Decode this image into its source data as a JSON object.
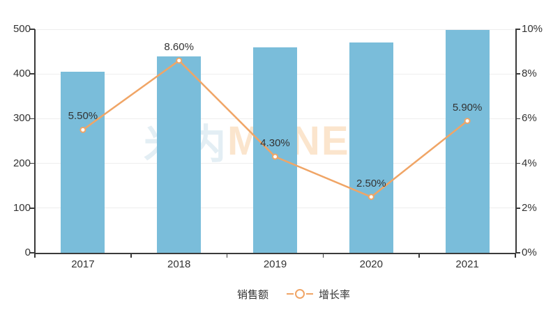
{
  "colors": {
    "bar": "#7abdda",
    "line": "#f0a566",
    "marker_fill": "#ffffff",
    "axis": "#3a3a3a",
    "grid": "#eeeeee",
    "text": "#333333",
    "watermark_cjk": "#e3eef4",
    "watermark_latin": "#fbe5cd"
  },
  "watermark": {
    "cjk": "米内",
    "latin": "MENET"
  },
  "legend": {
    "items": [
      {
        "label": "销售额",
        "marker": "bar-swatch"
      },
      {
        "label": "增长率",
        "marker": "line-ring"
      }
    ]
  },
  "chart_data": {
    "type": "bar+line combo, dual y-axis",
    "categories": [
      "2017",
      "2018",
      "2019",
      "2020",
      "2021"
    ],
    "series": [
      {
        "name": "销售额",
        "type": "bar",
        "axis": "left",
        "values": [
          405,
          440,
          459,
          470,
          498
        ],
        "color": "#7abdda"
      },
      {
        "name": "增长率",
        "type": "line",
        "axis": "right",
        "values": [
          5.5,
          8.6,
          4.3,
          2.5,
          5.9
        ],
        "labels": [
          "5.50%",
          "8.60%",
          "4.30%",
          "2.50%",
          "5.90%"
        ],
        "color": "#f0a566"
      }
    ],
    "left_axis": {
      "min": 0,
      "max": 500,
      "step": 100,
      "tick_labels": [
        "0",
        "100",
        "200",
        "300",
        "400",
        "500"
      ]
    },
    "right_axis": {
      "min": 0,
      "max": 10,
      "step": 2,
      "tick_labels": [
        "0%",
        "2%",
        "4%",
        "6%",
        "8%",
        "10%"
      ]
    },
    "grid": "horizontal only",
    "legend_position": "bottom-center",
    "title": ""
  }
}
